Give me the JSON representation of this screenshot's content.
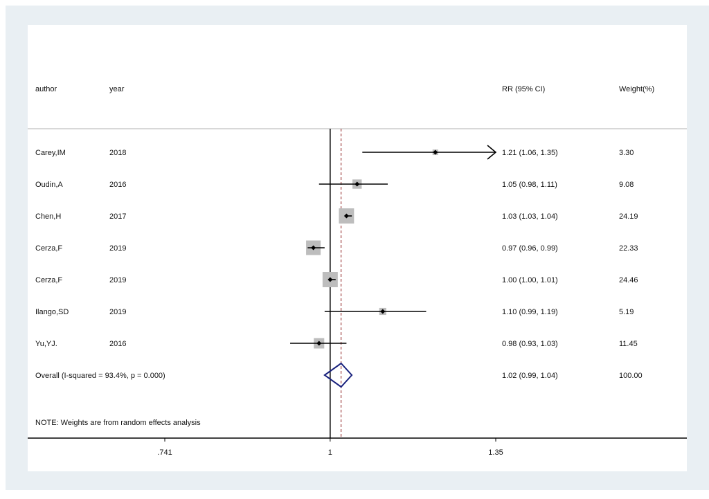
{
  "headers": {
    "author": "author",
    "year": "year",
    "estimate": "RR (95% CI)",
    "weight": "Weight(%)"
  },
  "note": "NOTE: Weights are from random effects analysis",
  "colors": {
    "background": "#e9eff3",
    "plot_area": "#ffffff",
    "box": "#bdbdbd",
    "diamond": "#1a237e",
    "overall_line": "#8b1a1a"
  },
  "chart_data": {
    "type": "forest",
    "scale": "log",
    "null_value": 1,
    "x_ticks": [
      {
        "value": 0.741,
        "label": ".741"
      },
      {
        "value": 1,
        "label": "1"
      },
      {
        "value": 1.35,
        "label": "1.35"
      }
    ],
    "xlim": [
      0.741,
      1.35
    ],
    "studies": [
      {
        "author": "Carey,IM",
        "year": "2018",
        "rr": 1.21,
        "lo": 1.06,
        "hi": 1.35,
        "ci_text": "1.21 (1.06, 1.35)",
        "weight": "3.30",
        "truncated_right": true
      },
      {
        "author": "Oudin,A",
        "year": "2016",
        "rr": 1.05,
        "lo": 0.98,
        "hi": 1.11,
        "ci_text": "1.05 (0.98, 1.11)",
        "weight": "9.08"
      },
      {
        "author": "Chen,H",
        "year": "2017",
        "rr": 1.03,
        "lo": 1.03,
        "hi": 1.04,
        "ci_text": "1.03 (1.03, 1.04)",
        "weight": "24.19"
      },
      {
        "author": "Cerza,F",
        "year": "2019",
        "rr": 0.97,
        "lo": 0.96,
        "hi": 0.99,
        "ci_text": "0.97 (0.96, 0.99)",
        "weight": "22.33"
      },
      {
        "author": "Cerza,F",
        "year": "2019",
        "rr": 1.0,
        "lo": 1.0,
        "hi": 1.01,
        "ci_text": "1.00 (1.00, 1.01)",
        "weight": "24.46"
      },
      {
        "author": "Ilango,SD",
        "year": "2019",
        "rr": 1.1,
        "lo": 0.99,
        "hi": 1.19,
        "ci_text": "1.10 (0.99, 1.19)",
        "weight": "5.19"
      },
      {
        "author": "Yu,YJ.",
        "year": "2016",
        "rr": 0.98,
        "lo": 0.93,
        "hi": 1.03,
        "ci_text": "0.98 (0.93, 1.03)",
        "weight": "11.45"
      }
    ],
    "overall": {
      "label": "Overall  (I-squared = 93.4%, p = 0.000)",
      "rr": 1.02,
      "lo": 0.99,
      "hi": 1.04,
      "ci_text": "1.02 (0.99, 1.04)",
      "weight": "100.00"
    }
  }
}
